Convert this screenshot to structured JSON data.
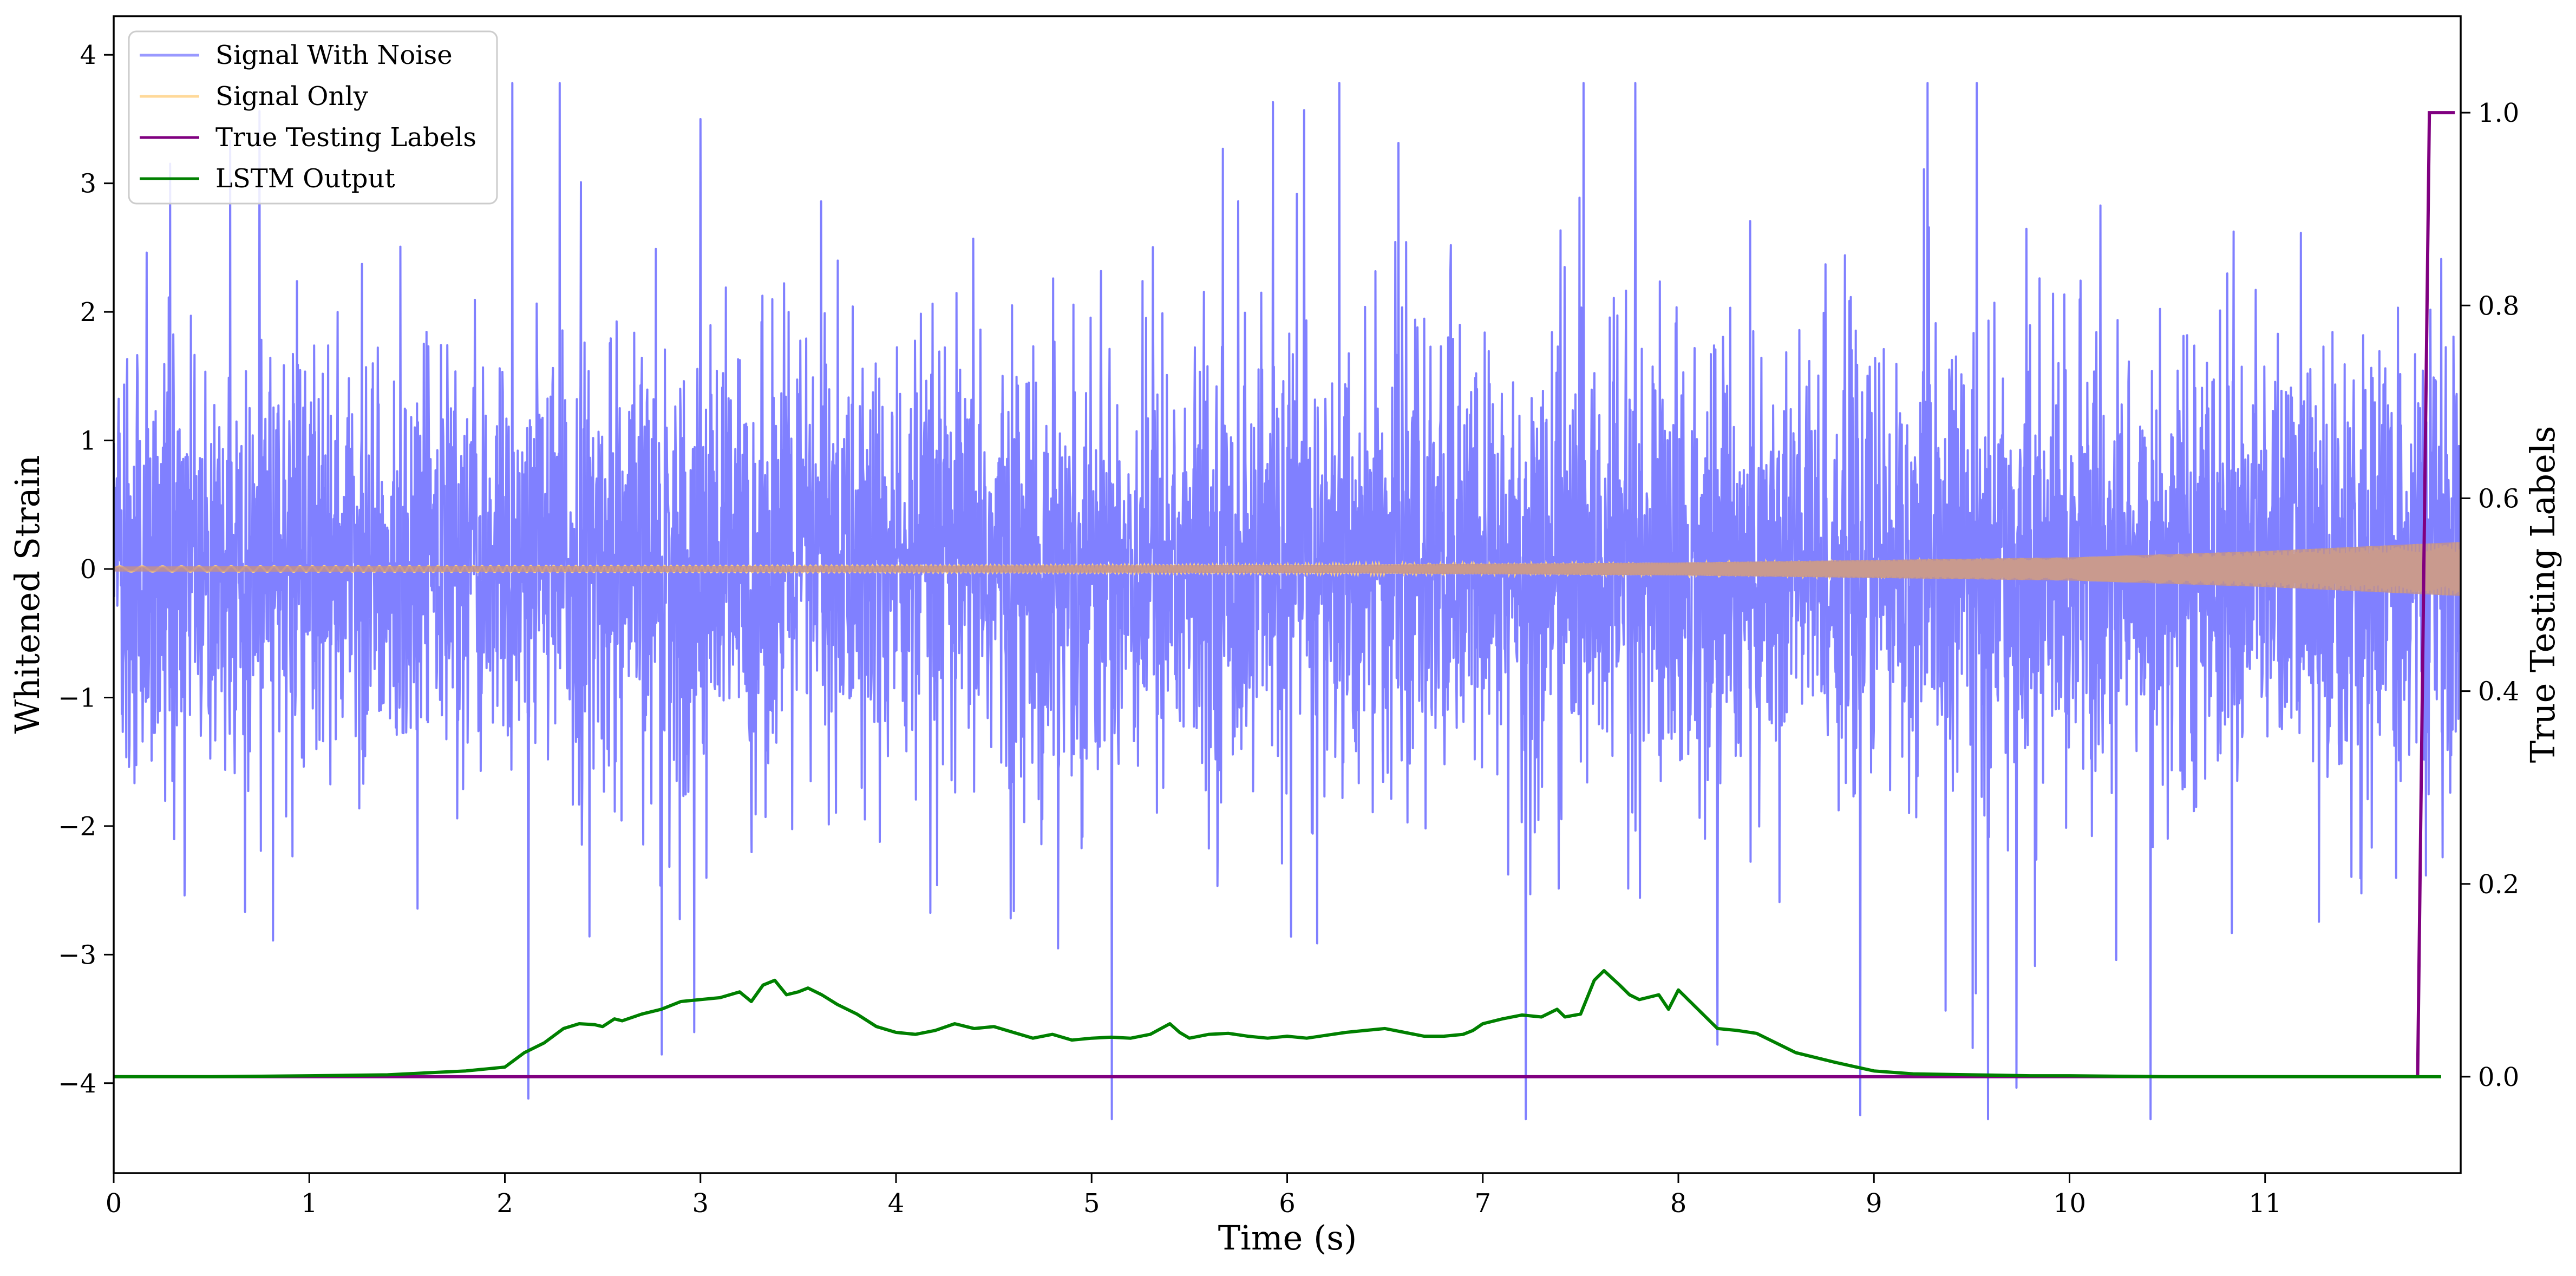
{
  "chart_data": {
    "type": "line",
    "xlabel": "Time (s)",
    "ylabel": "Whitened Strain",
    "y2label": "True Testing Labels",
    "xlim": [
      0,
      12
    ],
    "ylim": [
      -4.7,
      4.3
    ],
    "y2lim": [
      -0.1,
      1.1
    ],
    "xticks": [
      0,
      1,
      2,
      3,
      4,
      5,
      6,
      7,
      8,
      9,
      10,
      11
    ],
    "xtick_labels": [
      "0",
      "1",
      "2",
      "3",
      "4",
      "5",
      "6",
      "7",
      "8",
      "9",
      "10",
      "11"
    ],
    "yticks": [
      -4,
      -3,
      -2,
      -1,
      0,
      1,
      2,
      3,
      4
    ],
    "ytick_labels": [
      "−4",
      "−3",
      "−2",
      "−1",
      "0",
      "1",
      "2",
      "3",
      "4"
    ],
    "y2ticks": [
      0.0,
      0.2,
      0.4,
      0.6,
      0.8,
      1.0
    ],
    "y2tick_labels": [
      "0.0",
      "0.2",
      "0.4",
      "0.6",
      "0.8",
      "1.0"
    ],
    "grid": false,
    "legend_position": "top-left",
    "series": [
      {
        "name": "Signal With Noise",
        "axis": "left",
        "color": "#8080ff",
        "envelope": {
          "amplitude": 1.05,
          "extremes_max": 3.78,
          "extremes_min": -4.28
        }
      },
      {
        "name": "Signal Only",
        "axis": "left",
        "color": "#ffd080",
        "blend_color": "#c09090",
        "envelope": {
          "x": [
            0,
            6,
            8,
            10,
            11,
            12
          ],
          "amplitude": [
            0.02,
            0.03,
            0.05,
            0.09,
            0.14,
            0.21
          ]
        }
      },
      {
        "name": "True Testing Labels",
        "axis": "right",
        "color": "#800080",
        "x": [
          0,
          11.78,
          11.84,
          11.97
        ],
        "y": [
          0,
          0,
          1,
          1
        ]
      },
      {
        "name": "LSTM Output",
        "axis": "right",
        "color": "#008000",
        "x": [
          0,
          0.5,
          1,
          1.4,
          1.6,
          1.8,
          1.9,
          2,
          2.1,
          2.2,
          2.3,
          2.38,
          2.46,
          2.5,
          2.56,
          2.6,
          2.7,
          2.8,
          2.9,
          3,
          3.1,
          3.2,
          3.26,
          3.32,
          3.38,
          3.44,
          3.5,
          3.55,
          3.62,
          3.7,
          3.8,
          3.9,
          4,
          4.1,
          4.2,
          4.3,
          4.4,
          4.5,
          4.6,
          4.7,
          4.8,
          4.9,
          5,
          5.1,
          5.2,
          5.3,
          5.4,
          5.45,
          5.5,
          5.6,
          5.7,
          5.8,
          5.9,
          6,
          6.1,
          6.2,
          6.3,
          6.4,
          6.5,
          6.6,
          6.7,
          6.8,
          6.9,
          6.95,
          7,
          7.1,
          7.2,
          7.3,
          7.38,
          7.42,
          7.5,
          7.57,
          7.62,
          7.7,
          7.75,
          7.8,
          7.9,
          7.95,
          8,
          8.1,
          8.2,
          8.3,
          8.4,
          8.5,
          8.6,
          8.8,
          9,
          9.2,
          9.5,
          9.8,
          10,
          10.5,
          11,
          11.5,
          11.9
        ],
        "y": [
          0,
          0,
          0.001,
          0.002,
          0.004,
          0.006,
          0.008,
          0.01,
          0.025,
          0.035,
          0.05,
          0.055,
          0.054,
          0.052,
          0.06,
          0.058,
          0.065,
          0.07,
          0.078,
          0.08,
          0.082,
          0.088,
          0.078,
          0.095,
          0.1,
          0.085,
          0.088,
          0.092,
          0.085,
          0.075,
          0.065,
          0.052,
          0.046,
          0.044,
          0.048,
          0.055,
          0.05,
          0.052,
          0.046,
          0.04,
          0.044,
          0.038,
          0.04,
          0.041,
          0.04,
          0.044,
          0.055,
          0.046,
          0.04,
          0.044,
          0.045,
          0.042,
          0.04,
          0.042,
          0.04,
          0.043,
          0.046,
          0.048,
          0.05,
          0.046,
          0.042,
          0.042,
          0.044,
          0.048,
          0.055,
          0.06,
          0.064,
          0.062,
          0.07,
          0.062,
          0.065,
          0.1,
          0.11,
          0.095,
          0.085,
          0.08,
          0.085,
          0.07,
          0.09,
          0.07,
          0.05,
          0.048,
          0.045,
          0.035,
          0.025,
          0.015,
          0.006,
          0.003,
          0.002,
          0.001,
          0.001,
          0,
          0,
          0,
          0
        ]
      }
    ]
  }
}
